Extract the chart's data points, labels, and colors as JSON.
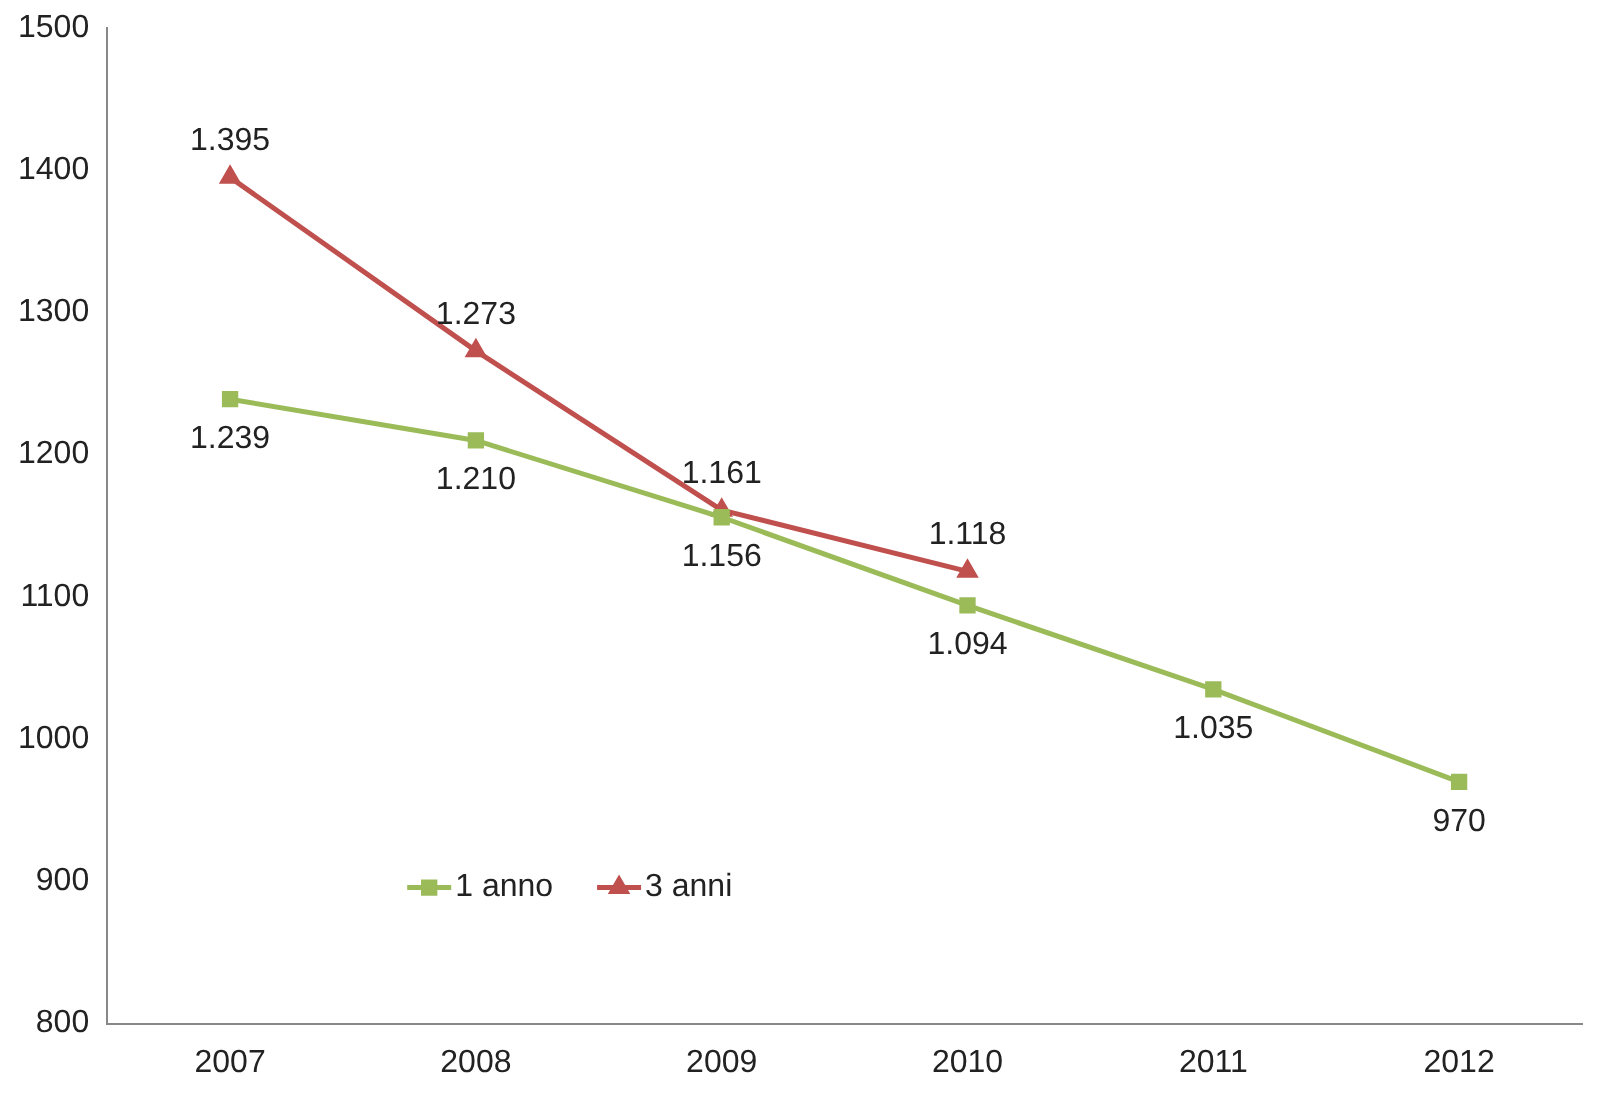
{
  "chart_data": {
    "type": "line",
    "categories": [
      "2007",
      "2008",
      "2009",
      "2010",
      "2011",
      "2012"
    ],
    "series": [
      {
        "name": "1 anno",
        "color": "#9bbb59",
        "marker": "square",
        "values": [
          1239,
          1210,
          1156,
          1094,
          1035,
          970
        ],
        "value_labels": [
          "1.239",
          "1.210",
          "1.156",
          "1.094",
          "1.035",
          "970"
        ]
      },
      {
        "name": "3 anni",
        "color": "#c0504d",
        "marker": "triangle",
        "values": [
          1395,
          1273,
          1161,
          1118,
          null,
          null
        ],
        "value_labels": [
          "1.395",
          "1.273",
          "1.161",
          "1.118",
          null,
          null
        ]
      }
    ],
    "ylim": [
      800,
      1500
    ],
    "yticks": [
      800,
      900,
      1000,
      1100,
      1200,
      1300,
      1400,
      1500
    ],
    "grid": false,
    "legend": "bottom left",
    "line_style": "solid"
  }
}
